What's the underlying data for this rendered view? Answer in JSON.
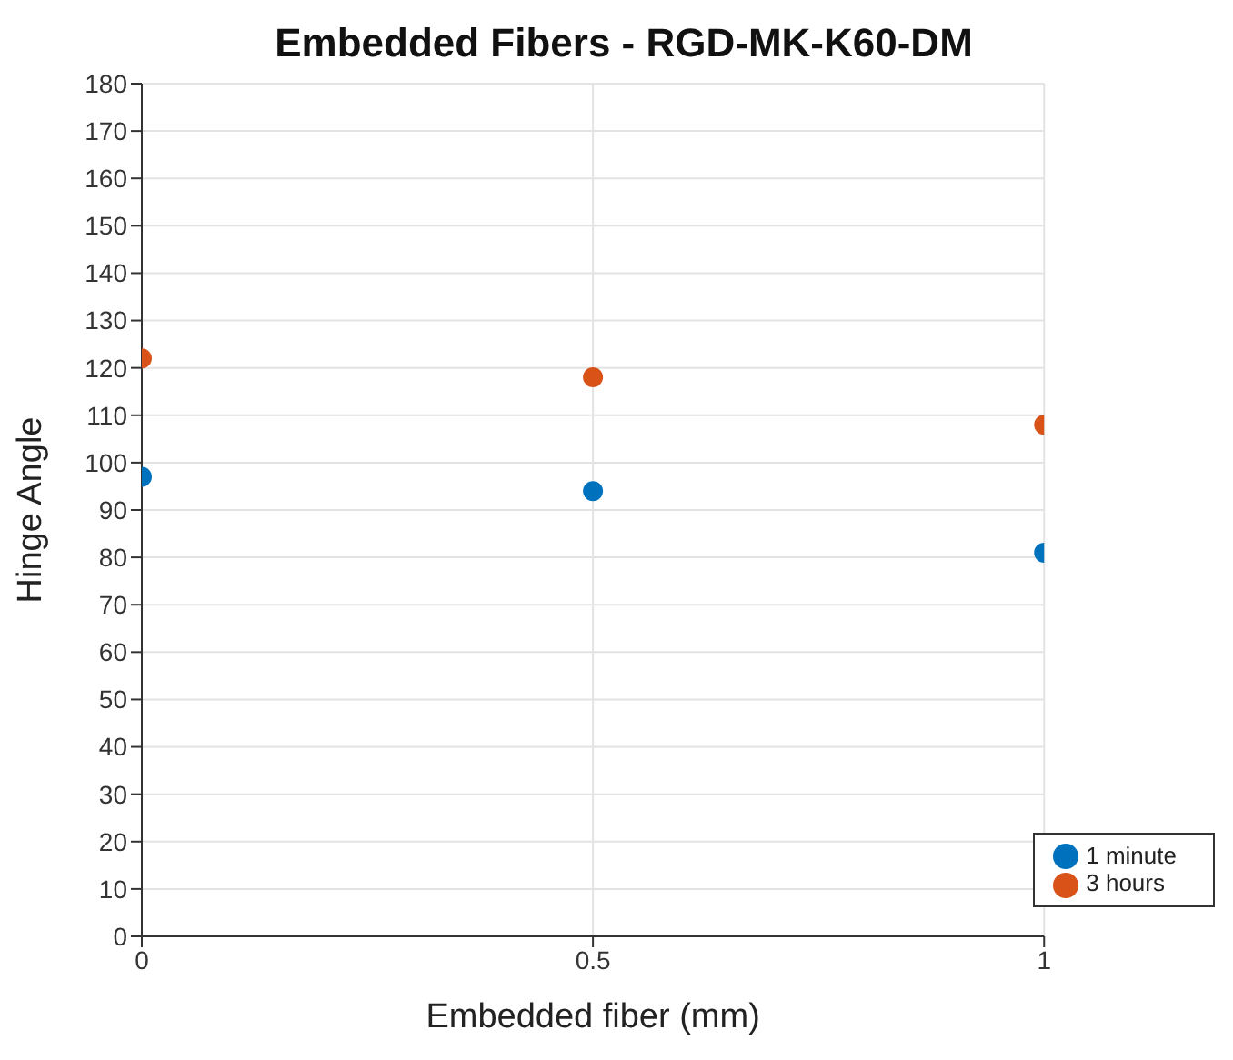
{
  "chart_data": {
    "type": "scatter",
    "title": "Embedded Fibers - RGD-MK-K60-DM",
    "xlabel": "Embedded fiber (mm)",
    "ylabel": "Hinge Angle",
    "x": [
      0,
      0.5,
      1
    ],
    "series": [
      {
        "name": "1 minute",
        "color": "#0072bd",
        "values": [
          97,
          94,
          81
        ]
      },
      {
        "name": "3 hours",
        "color": "#d95319",
        "values": [
          122,
          118,
          108
        ]
      }
    ],
    "xlim": [
      0,
      1
    ],
    "xticks": [
      0,
      0.5,
      1
    ],
    "ylim": [
      0,
      180
    ],
    "yticks": [
      0,
      10,
      20,
      30,
      40,
      50,
      60,
      70,
      80,
      90,
      100,
      110,
      120,
      130,
      140,
      150,
      160,
      170,
      180
    ],
    "grid": true,
    "legend": "bottom right",
    "marker": "circle"
  }
}
